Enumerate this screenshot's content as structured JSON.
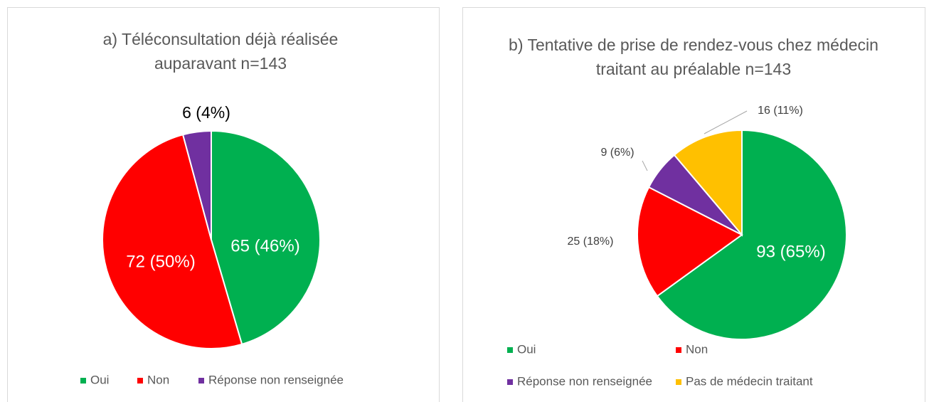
{
  "chart_data": [
    {
      "type": "pie",
      "title": "a) Téléconsultation déjà réalisée auparavant n=143",
      "categories": [
        "Oui",
        "Non",
        "Réponse non renseignée"
      ],
      "values": [
        65,
        72,
        6
      ],
      "value_labels": [
        "65 (46%)",
        "72 (50%)",
        "6 (4%)"
      ],
      "colors": [
        "#00b050",
        "#ff0000",
        "#7030a0"
      ],
      "legend": "bottom"
    },
    {
      "type": "pie",
      "title": "b) Tentative de prise de rendez-vous chez médecin traitant au préalable n=143",
      "categories": [
        "Oui",
        "Non",
        "Réponse non renseignée",
        "Pas de médecin traitant"
      ],
      "values": [
        93,
        25,
        9,
        16
      ],
      "value_labels": [
        "93 (65%)",
        "25 (18%)",
        "9 (6%)",
        "16 (11%)"
      ],
      "colors": [
        "#00b050",
        "#ff0000",
        "#7030a0",
        "#ffc000"
      ],
      "legend": "bottom"
    }
  ]
}
